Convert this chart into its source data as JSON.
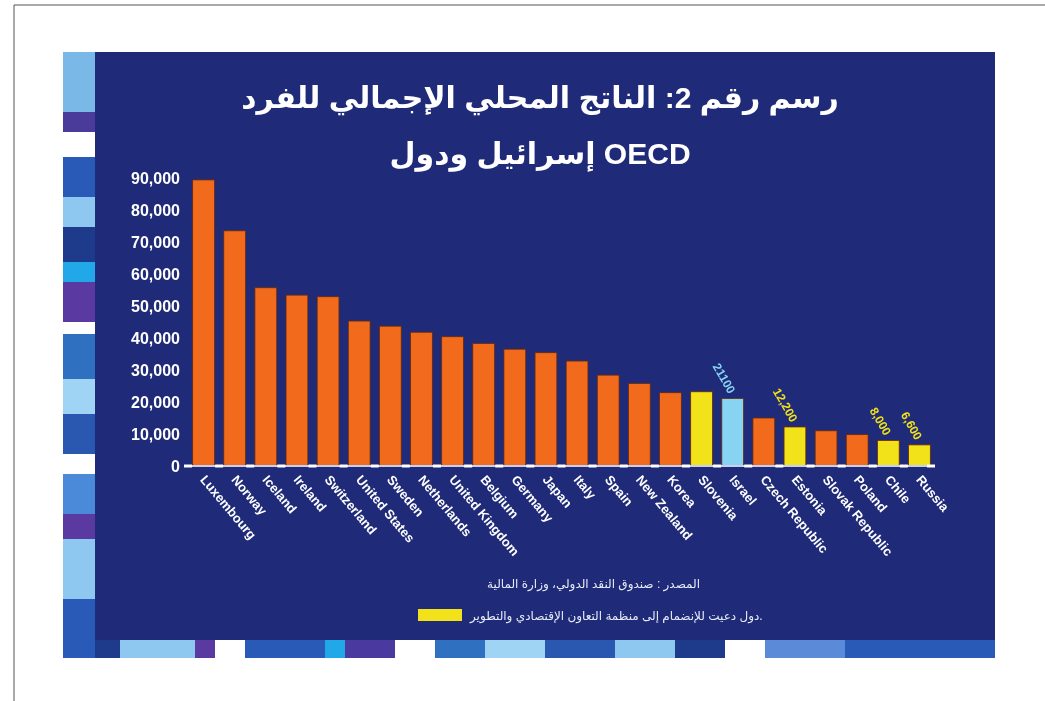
{
  "chart_data": {
    "type": "bar",
    "title": "رسم رقم 2: الناتج المحلي الإجمالي للفرد",
    "subtitle": "إسرائيل ودول OECD",
    "categories": [
      "Luxembourg",
      "Norway",
      "Iceland",
      "Ireland",
      "Switzerland",
      "United States",
      "Sweden",
      "Netherlands",
      "United Kingdom",
      "Belgium",
      "Germany",
      "Japan",
      "Italy",
      "Spain",
      "New Zealand",
      "Korea",
      "Slovenia",
      "Israel",
      "Czech Republic",
      "Estonia",
      "Slovak Republic",
      "Poland",
      "Chile",
      "Russia"
    ],
    "stacked": true,
    "series": [
      {
        "color": "#f26b1d",
        "values": [
          89400,
          73500,
          55700,
          53400,
          52900,
          45300,
          43700,
          41800,
          40400,
          38300,
          36500,
          35400,
          32800,
          28400,
          25800,
          22900,
          null,
          null,
          15000,
          null,
          11000,
          9800,
          null,
          null
        ]
      },
      {
        "name": "دول دعيت للإنضمام إلى منظمة التعاون الإقتصادي والتطوير.",
        "color": "#f2e21a",
        "values": [
          null,
          null,
          null,
          null,
          null,
          null,
          null,
          null,
          null,
          null,
          null,
          null,
          null,
          null,
          null,
          null,
          23200,
          null,
          null,
          12200,
          null,
          null,
          8000,
          6600
        ],
        "value_labels": [
          null,
          null,
          null,
          null,
          null,
          null,
          null,
          null,
          null,
          null,
          null,
          null,
          null,
          null,
          null,
          null,
          null,
          null,
          null,
          "12,200",
          null,
          null,
          "8,000",
          "6,600"
        ]
      },
      {
        "color": "#86d3f2",
        "values": [
          null,
          null,
          null,
          null,
          null,
          null,
          null,
          null,
          null,
          null,
          null,
          null,
          null,
          null,
          null,
          null,
          null,
          21100,
          null,
          null,
          null,
          null,
          null,
          null
        ],
        "value_labels": [
          null,
          null,
          null,
          null,
          null,
          null,
          null,
          null,
          null,
          null,
          null,
          null,
          null,
          null,
          null,
          null,
          null,
          "21100",
          null,
          null,
          null,
          null,
          null,
          null
        ]
      }
    ],
    "ylim": [
      0,
      90000
    ],
    "yticks": [
      0,
      {
        "value": 10000,
        "label": "10,000"
      },
      {
        "value": 20000,
        "label": "20,000"
      },
      {
        "value": 30000,
        "label": "30,000"
      },
      {
        "value": 40000,
        "label": "40,000"
      },
      {
        "value": 50000,
        "label": "50,000"
      },
      {
        "value": 60000,
        "label": "60,000"
      },
      {
        "value": 70000,
        "label": "70,000"
      },
      {
        "value": 80000,
        "label": "80,000"
      },
      {
        "value": 90000,
        "label": "90,000"
      }
    ],
    "grid": false,
    "legend": "bottom",
    "annotations": [
      "المصدر : صندوق النقد الدولي، وزارة المالية"
    ]
  }
}
